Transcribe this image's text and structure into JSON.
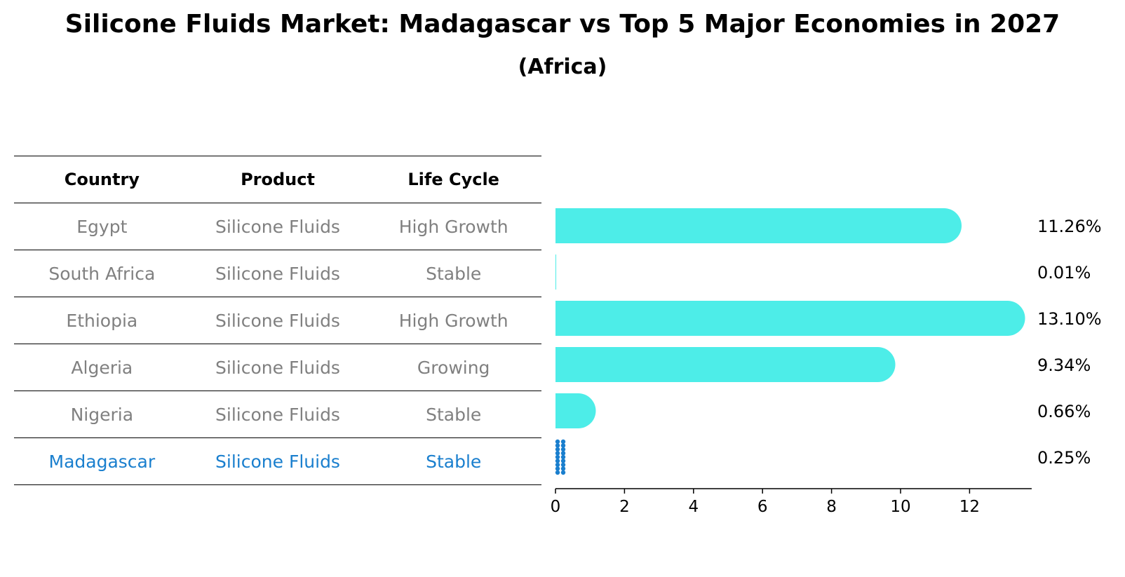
{
  "title": "Silicone Fluids Market: Madagascar vs Top 5 Major Economies in 2027",
  "subtitle": "(Africa)",
  "table": {
    "headers": [
      "Country",
      "Product",
      "Life Cycle"
    ],
    "rows": [
      {
        "country": "Egypt",
        "product": "Silicone Fluids",
        "life_cycle": "High Growth"
      },
      {
        "country": "South Africa",
        "product": "Silicone Fluids",
        "life_cycle": "Stable"
      },
      {
        "country": "Ethiopia",
        "product": "Silicone Fluids",
        "life_cycle": "High Growth"
      },
      {
        "country": "Algeria",
        "product": "Silicone Fluids",
        "life_cycle": "Growing"
      },
      {
        "country": "Nigeria",
        "product": "Silicone Fluids",
        "life_cycle": "Stable"
      },
      {
        "country": "Madagascar",
        "product": "Silicone Fluids",
        "life_cycle": "Stable"
      }
    ]
  },
  "colors": {
    "bar": "#4dede8",
    "highlight": "#1a7fce",
    "muted_text": "#808080"
  },
  "chart_data": {
    "type": "bar",
    "orientation": "horizontal",
    "categories": [
      "Egypt",
      "South Africa",
      "Ethiopia",
      "Algeria",
      "Nigeria",
      "Madagascar"
    ],
    "values": [
      11.26,
      0.01,
      13.1,
      9.34,
      0.66,
      0.25
    ],
    "value_labels": [
      "11.26%",
      "0.01%",
      "13.10%",
      "9.34%",
      "0.66%",
      "0.25%"
    ],
    "highlight_category": "Madagascar",
    "xlim": [
      0,
      13.8
    ],
    "xticks": [
      0,
      2,
      4,
      6,
      8,
      10,
      12
    ],
    "xlabel": "",
    "ylabel": "",
    "grid": false
  }
}
